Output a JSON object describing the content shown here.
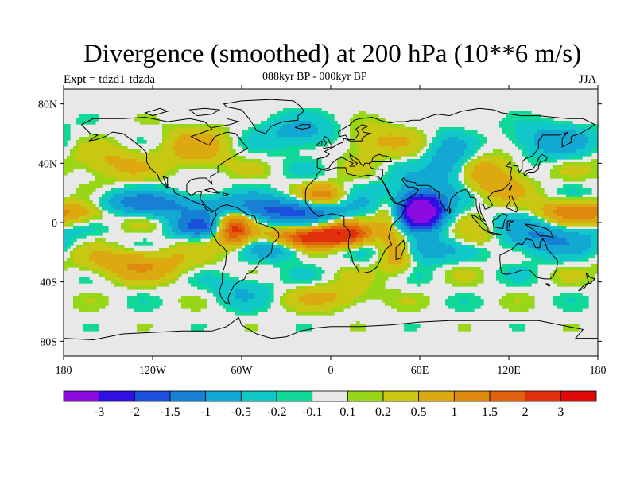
{
  "chart_data": {
    "type": "heatmap",
    "title": "Divergence (smoothed) at 200 hPa (10**6 m/s)",
    "subtitle": "088kyr BP - 000kyr BP",
    "left_label": "Expt = tdzd1-tdzda",
    "right_label": "JJA",
    "x_range": [
      -180,
      180
    ],
    "y_range": [
      -90,
      90
    ],
    "x_ticks": [
      {
        "value": -180,
        "label": "180"
      },
      {
        "value": -120,
        "label": "120W"
      },
      {
        "value": -60,
        "label": "60W"
      },
      {
        "value": 0,
        "label": "0"
      },
      {
        "value": 60,
        "label": "60E"
      },
      {
        "value": 120,
        "label": "120E"
      },
      {
        "value": 180,
        "label": "180"
      }
    ],
    "y_ticks": [
      {
        "value": 80,
        "label": "80N"
      },
      {
        "value": 40,
        "label": "40N"
      },
      {
        "value": 0,
        "label": "0"
      },
      {
        "value": -40,
        "label": "40S"
      },
      {
        "value": -80,
        "label": "80S"
      }
    ],
    "levels": [
      -3,
      -2,
      -1.5,
      -1,
      -0.5,
      -0.2,
      -0.1,
      0.1,
      0.2,
      0.5,
      1,
      1.5,
      2,
      3
    ],
    "level_labels": [
      "-3",
      "-2",
      "-1.5",
      "-1",
      "-0.5",
      "-0.2",
      "-0.1",
      "0.1",
      "0.2",
      "0.5",
      "1",
      "1.5",
      "2",
      "3"
    ],
    "colors": [
      "#8a0ce0",
      "#2f10e0",
      "#1b50dc",
      "#1780d4",
      "#12a8d2",
      "#10c8c8",
      "#10d898",
      "#e8e8e8",
      "#98d618",
      "#c8c812",
      "#dcaa10",
      "#de8a0e",
      "#e0600e",
      "#e0300c",
      "#e00a08"
    ],
    "features": [
      {
        "lon": 62,
        "lat": 8,
        "amp": -3.2,
        "slon": 9,
        "slat": 7
      },
      {
        "lon": 55,
        "lat": 10,
        "amp": -1.6,
        "slon": 16,
        "slat": 12
      },
      {
        "lon": -30,
        "lat": 8,
        "amp": -1.6,
        "slon": 30,
        "slat": 6
      },
      {
        "lon": -130,
        "lat": 12,
        "amp": -1.3,
        "slon": 40,
        "slat": 6
      },
      {
        "lon": -90,
        "lat": -3,
        "amp": -1.4,
        "slon": 12,
        "slat": 5
      },
      {
        "lon": 140,
        "lat": -10,
        "amp": -1.1,
        "slon": 28,
        "slat": 8
      },
      {
        "lon": -35,
        "lat": -16,
        "amp": -1.0,
        "slon": 15,
        "slat": 6
      },
      {
        "lon": 60,
        "lat": -18,
        "amp": -1.0,
        "slon": 15,
        "slat": 6
      },
      {
        "lon": 80,
        "lat": 42,
        "amp": -0.9,
        "slon": 10,
        "slat": 12
      },
      {
        "lon": 150,
        "lat": 55,
        "amp": -0.8,
        "slon": 20,
        "slat": 8
      },
      {
        "lon": -20,
        "lat": 60,
        "amp": -0.7,
        "slon": 20,
        "slat": 8
      },
      {
        "lon": -15,
        "lat": -10,
        "amp": 2.4,
        "slon": 20,
        "slat": 5
      },
      {
        "lon": 10,
        "lat": -7,
        "amp": 1.9,
        "slon": 12,
        "slat": 5
      },
      {
        "lon": -65,
        "lat": -4,
        "amp": 2.2,
        "slon": 8,
        "slat": 8
      },
      {
        "lon": -170,
        "lat": 8,
        "amp": 1.3,
        "slon": 20,
        "slat": 6
      },
      {
        "lon": 160,
        "lat": 8,
        "amp": 1.2,
        "slon": 15,
        "slat": 6
      },
      {
        "lon": 40,
        "lat": 5,
        "amp": 1.3,
        "slon": 8,
        "slat": 10
      },
      {
        "lon": -130,
        "lat": -28,
        "amp": 1.0,
        "slon": 25,
        "slat": 7
      },
      {
        "lon": 45,
        "lat": -20,
        "amp": 1.0,
        "slon": 8,
        "slat": 10
      },
      {
        "lon": -90,
        "lat": 50,
        "amp": 0.8,
        "slon": 15,
        "slat": 10
      },
      {
        "lon": -5,
        "lat": 18,
        "amp": 1.4,
        "slon": 10,
        "slat": 5
      },
      {
        "lon": 110,
        "lat": 30,
        "amp": 0.9,
        "slon": 15,
        "slat": 10
      },
      {
        "lon": 100,
        "lat": -10,
        "amp": 0.8,
        "slon": 15,
        "slat": 6
      },
      {
        "lon": 0,
        "lat": -50,
        "amp": 0.6,
        "slon": 20,
        "slat": 6
      },
      {
        "lon": -60,
        "lat": -45,
        "amp": -0.5,
        "slon": 15,
        "slat": 8
      },
      {
        "lon": 30,
        "lat": 55,
        "amp": 0.6,
        "slon": 20,
        "slat": 8
      },
      {
        "lon": -150,
        "lat": 40,
        "amp": 0.6,
        "slon": 20,
        "slat": 8
      }
    ]
  }
}
